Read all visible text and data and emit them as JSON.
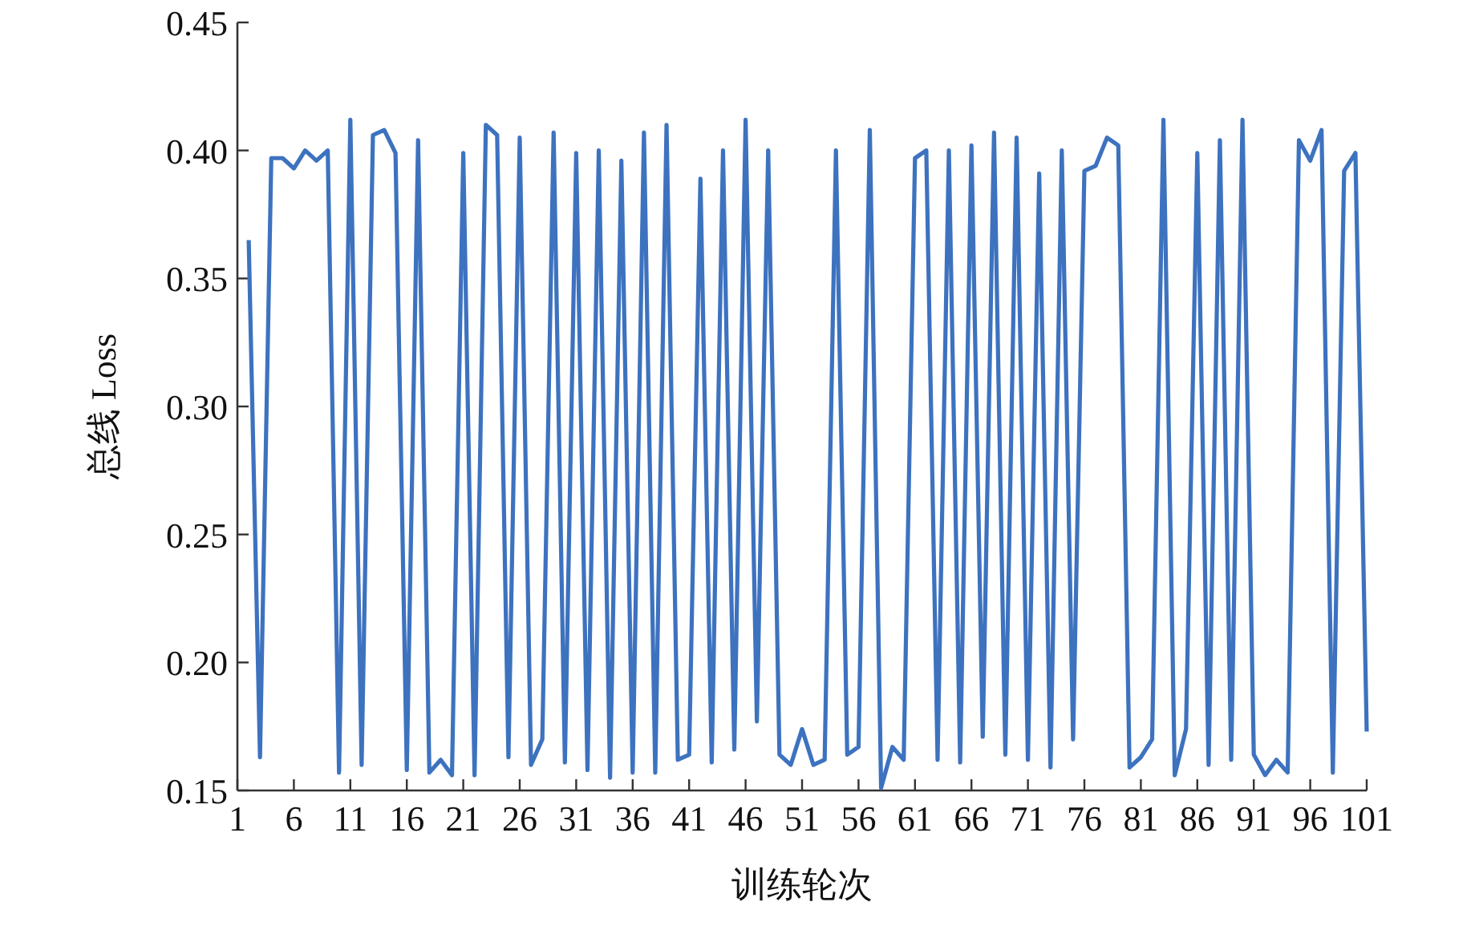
{
  "chart_data": {
    "type": "line",
    "xlabel": "训练轮次",
    "ylabel": "总线 Loss",
    "x": [
      2,
      3,
      4,
      5,
      6,
      7,
      8,
      9,
      10,
      11,
      12,
      13,
      14,
      15,
      16,
      17,
      18,
      19,
      20,
      21,
      22,
      23,
      24,
      25,
      26,
      27,
      28,
      29,
      30,
      31,
      32,
      33,
      34,
      35,
      36,
      37,
      38,
      39,
      40,
      41,
      42,
      43,
      44,
      45,
      46,
      47,
      48,
      49,
      50,
      51,
      52,
      53,
      54,
      55,
      56,
      57,
      58,
      59,
      60,
      61,
      62,
      63,
      64,
      65,
      66,
      67,
      68,
      69,
      70,
      71,
      72,
      73,
      74,
      75,
      76,
      77,
      78,
      79,
      80,
      81,
      82,
      83,
      84,
      85,
      86,
      87,
      88,
      89,
      90,
      91,
      92,
      93,
      94,
      95,
      96,
      97,
      98,
      99,
      100,
      101
    ],
    "series": [
      {
        "color": "#3d72bf",
        "values": [
          0.365,
          0.163,
          0.397,
          0.397,
          0.393,
          0.4,
          0.396,
          0.4,
          0.157,
          0.412,
          0.16,
          0.406,
          0.408,
          0.399,
          0.158,
          0.404,
          0.157,
          0.162,
          0.156,
          0.399,
          0.156,
          0.41,
          0.406,
          0.163,
          0.405,
          0.16,
          0.17,
          0.407,
          0.161,
          0.399,
          0.158,
          0.4,
          0.155,
          0.396,
          0.157,
          0.407,
          0.157,
          0.41,
          0.162,
          0.164,
          0.389,
          0.161,
          0.4,
          0.166,
          0.412,
          0.177,
          0.4,
          0.164,
          0.16,
          0.174,
          0.16,
          0.162,
          0.4,
          0.164,
          0.167,
          0.408,
          0.151,
          0.167,
          0.162,
          0.397,
          0.4,
          0.162,
          0.4,
          0.161,
          0.402,
          0.171,
          0.407,
          0.164,
          0.405,
          0.162,
          0.391,
          0.159,
          0.4,
          0.17,
          0.392,
          0.394,
          0.405,
          0.402,
          0.159,
          0.163,
          0.17,
          0.412,
          0.156,
          0.174,
          0.399,
          0.16,
          0.404,
          0.162,
          0.412,
          0.164,
          0.156,
          0.162,
          0.157,
          0.404,
          0.396,
          0.408,
          0.157,
          0.392,
          0.399,
          0.173
        ]
      }
    ],
    "xlim": [
      1,
      101
    ],
    "xticks": [
      1,
      6,
      11,
      16,
      21,
      26,
      31,
      36,
      41,
      46,
      51,
      56,
      61,
      66,
      71,
      76,
      81,
      86,
      91,
      96,
      101
    ],
    "ylim": [
      0.15,
      0.45
    ],
    "yticks": [
      {
        "value": 0.15,
        "label": "0.15"
      },
      {
        "value": 0.2,
        "label": "0.20"
      },
      {
        "value": 0.25,
        "label": "0.25"
      },
      {
        "value": 0.3,
        "label": "0.30"
      },
      {
        "value": 0.35,
        "label": "0.35"
      },
      {
        "value": 0.4,
        "label": "0.40"
      },
      {
        "value": 0.45,
        "label": "0.45"
      }
    ],
    "grid": false,
    "marker": "none",
    "line_style": "solid"
  }
}
